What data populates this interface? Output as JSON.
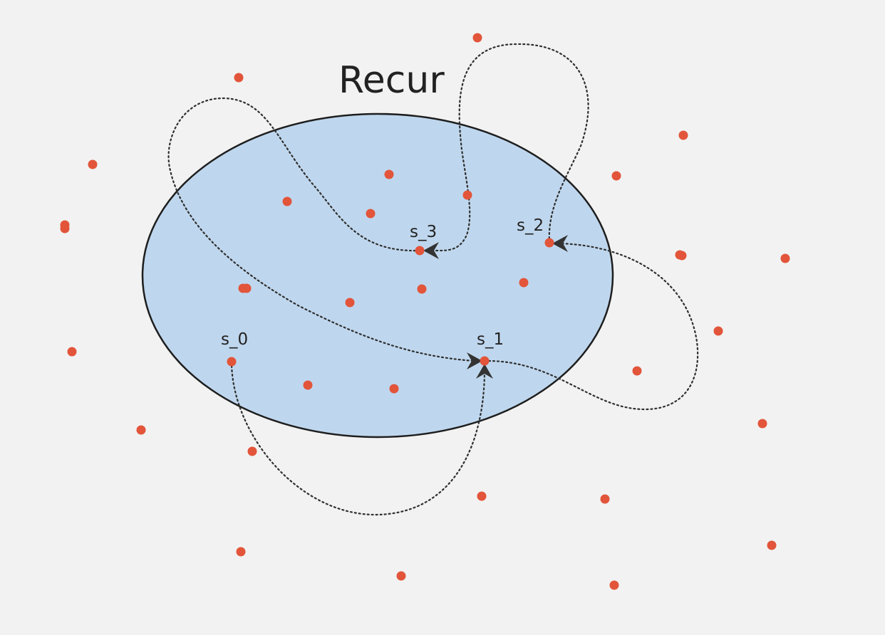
{
  "diagram": {
    "title": "Recur",
    "colors": {
      "background": "#f2f2f2",
      "region_fill": "#bfd7ee",
      "region_stroke": "#1e1e1e",
      "point": "#e2553a",
      "path": "#2f2f2f",
      "arrow": "#333333"
    },
    "states": [
      {
        "label": "s_0"
      },
      {
        "label": "s_1"
      },
      {
        "label": "s_2"
      },
      {
        "label": "s_3"
      }
    ]
  }
}
